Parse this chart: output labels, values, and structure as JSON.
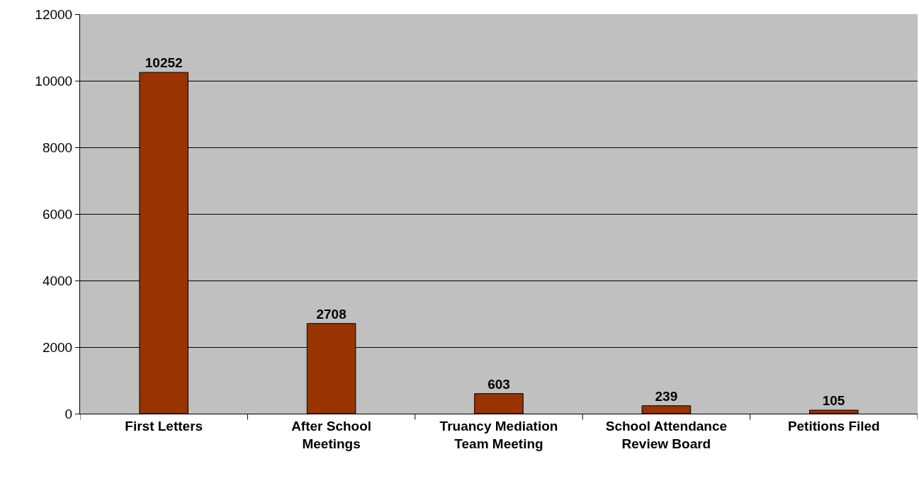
{
  "chart_data": {
    "type": "bar",
    "categories": [
      "First Letters",
      "After School Meetings",
      "Truancy Mediation Team Meeting",
      "School Attendance Review Board",
      "Petitions Filed"
    ],
    "values": [
      10252,
      2708,
      603,
      239,
      105
    ],
    "color": "#993300",
    "ylim": [
      0,
      12000
    ],
    "yticks": [
      0,
      2000,
      4000,
      6000,
      8000,
      10000,
      12000
    ],
    "grid": "y",
    "data_labels": true
  }
}
